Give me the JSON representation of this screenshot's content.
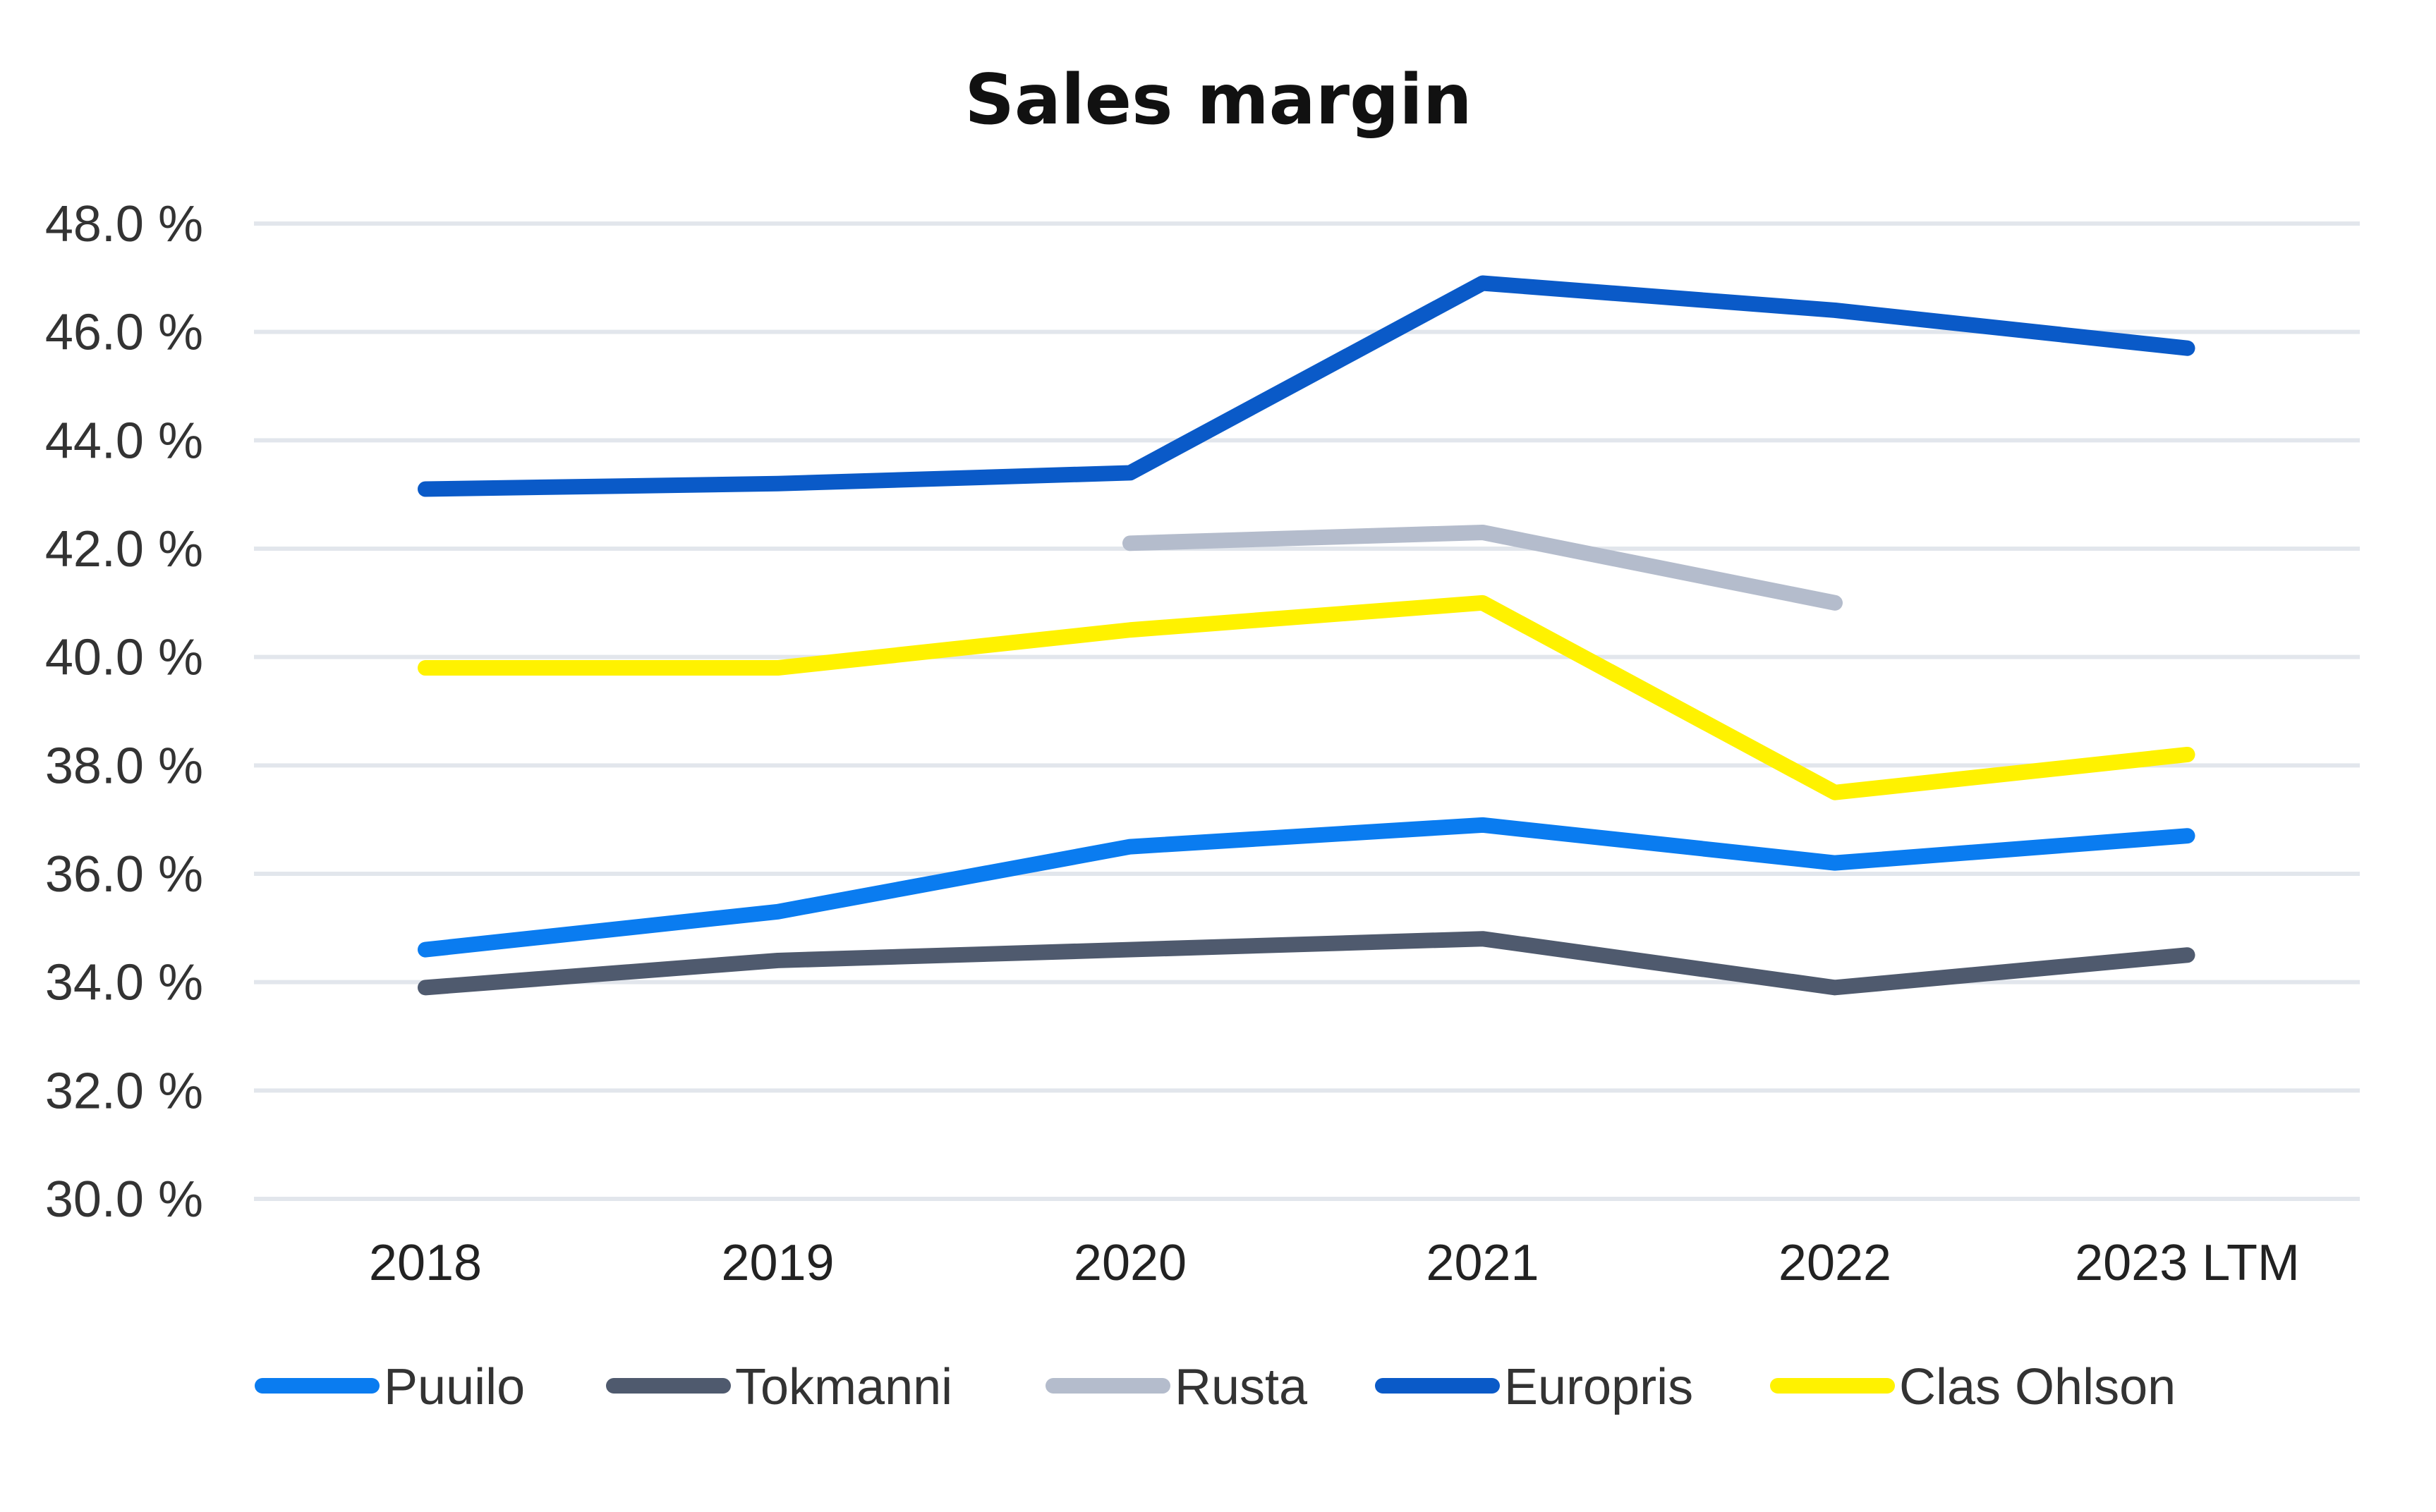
{
  "chart_data": {
    "type": "line",
    "title": "Sales margin",
    "xlabel": "",
    "ylabel": "",
    "categories": [
      "2018",
      "2019",
      "2020",
      "2021",
      "2022",
      "2023 LTM"
    ],
    "ylim": [
      30.0,
      48.0
    ],
    "yticks": [
      30.0,
      32.0,
      34.0,
      36.0,
      38.0,
      40.0,
      42.0,
      44.0,
      46.0,
      48.0
    ],
    "ytick_labels": [
      "30.0 %",
      "32.0 %",
      "34.0 %",
      "36.0 %",
      "38.0 %",
      "40.0 %",
      "42.0 %",
      "44.0 %",
      "46.0 %",
      "48.0 %"
    ],
    "grid": true,
    "legend_position": "bottom",
    "series": [
      {
        "name": "Puuilo",
        "color": "#0a7cf0",
        "values": [
          34.6,
          35.3,
          36.5,
          36.9,
          36.2,
          36.7
        ]
      },
      {
        "name": "Tokmanni",
        "color": "#4f5a6e",
        "values": [
          33.9,
          34.4,
          34.6,
          34.8,
          33.9,
          34.5
        ]
      },
      {
        "name": "Rusta",
        "color": "#b4bccc",
        "values": [
          null,
          null,
          42.1,
          42.3,
          41.0,
          null
        ]
      },
      {
        "name": "Europris",
        "color": "#0a5ac8",
        "values": [
          43.1,
          43.2,
          43.4,
          46.9,
          46.4,
          45.7
        ]
      },
      {
        "name": "Clas Ohlson",
        "color": "#fff200",
        "values": [
          39.8,
          39.8,
          40.5,
          41.0,
          37.5,
          38.2
        ]
      }
    ]
  }
}
